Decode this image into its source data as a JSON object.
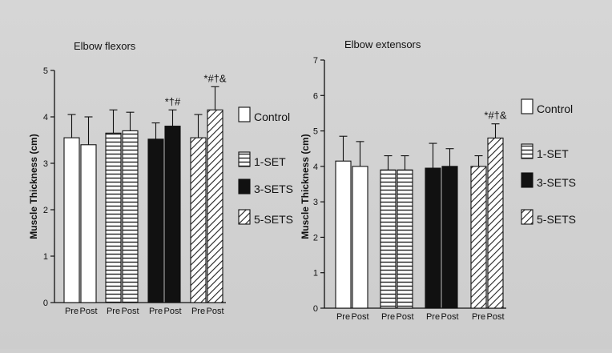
{
  "chart_data": [
    {
      "type": "bar",
      "title": "Elbow flexors",
      "ylabel": "Muscle Thickness (cm)",
      "ylim": [
        0,
        5
      ],
      "yticks": [
        "0",
        "1",
        "2",
        "3",
        "4",
        "5"
      ],
      "groups": [
        "Control",
        "1-SET",
        "3-SETS",
        "5-SETS"
      ],
      "timepoints": [
        "Pre",
        "Post"
      ],
      "series": [
        {
          "name": "Control",
          "pattern": "white",
          "values": [
            3.55,
            3.4
          ],
          "errors": [
            0.5,
            0.6
          ],
          "annotations": [
            "",
            ""
          ]
        },
        {
          "name": "1-SET",
          "pattern": "horizontal",
          "values": [
            3.65,
            3.7
          ],
          "errors": [
            0.5,
            0.4
          ],
          "annotations": [
            "",
            ""
          ]
        },
        {
          "name": "3-SETS",
          "pattern": "black",
          "values": [
            3.52,
            3.8
          ],
          "errors": [
            0.35,
            0.35
          ],
          "annotations": [
            "",
            "*†#"
          ]
        },
        {
          "name": "5-SETS",
          "pattern": "diagonal",
          "values": [
            3.55,
            4.15
          ],
          "errors": [
            0.5,
            0.5
          ],
          "annotations": [
            "",
            "*#†&"
          ]
        }
      ]
    },
    {
      "type": "bar",
      "title": "Elbow extensors",
      "ylabel": "Muscle Thickness (cm)",
      "ylim": [
        0,
        7
      ],
      "yticks": [
        "0",
        "1",
        "2",
        "3",
        "4",
        "5",
        "6",
        "7"
      ],
      "groups": [
        "Control",
        "1-SET",
        "3-SETS",
        "5-SETS"
      ],
      "timepoints": [
        "Pre",
        "Post"
      ],
      "series": [
        {
          "name": "Control",
          "pattern": "white",
          "values": [
            4.15,
            4.0
          ],
          "errors": [
            0.7,
            0.7
          ],
          "annotations": [
            "",
            ""
          ]
        },
        {
          "name": "1-SET",
          "pattern": "horizontal",
          "values": [
            3.9,
            3.9
          ],
          "errors": [
            0.4,
            0.4
          ],
          "annotations": [
            "",
            ""
          ]
        },
        {
          "name": "3-SETS",
          "pattern": "black",
          "values": [
            3.95,
            4.0
          ],
          "errors": [
            0.7,
            0.5
          ],
          "annotations": [
            "",
            ""
          ]
        },
        {
          "name": "5-SETS",
          "pattern": "diagonal",
          "values": [
            4.0,
            4.8
          ],
          "errors": [
            0.3,
            0.4
          ],
          "annotations": [
            "",
            "*#†&"
          ]
        }
      ]
    }
  ]
}
